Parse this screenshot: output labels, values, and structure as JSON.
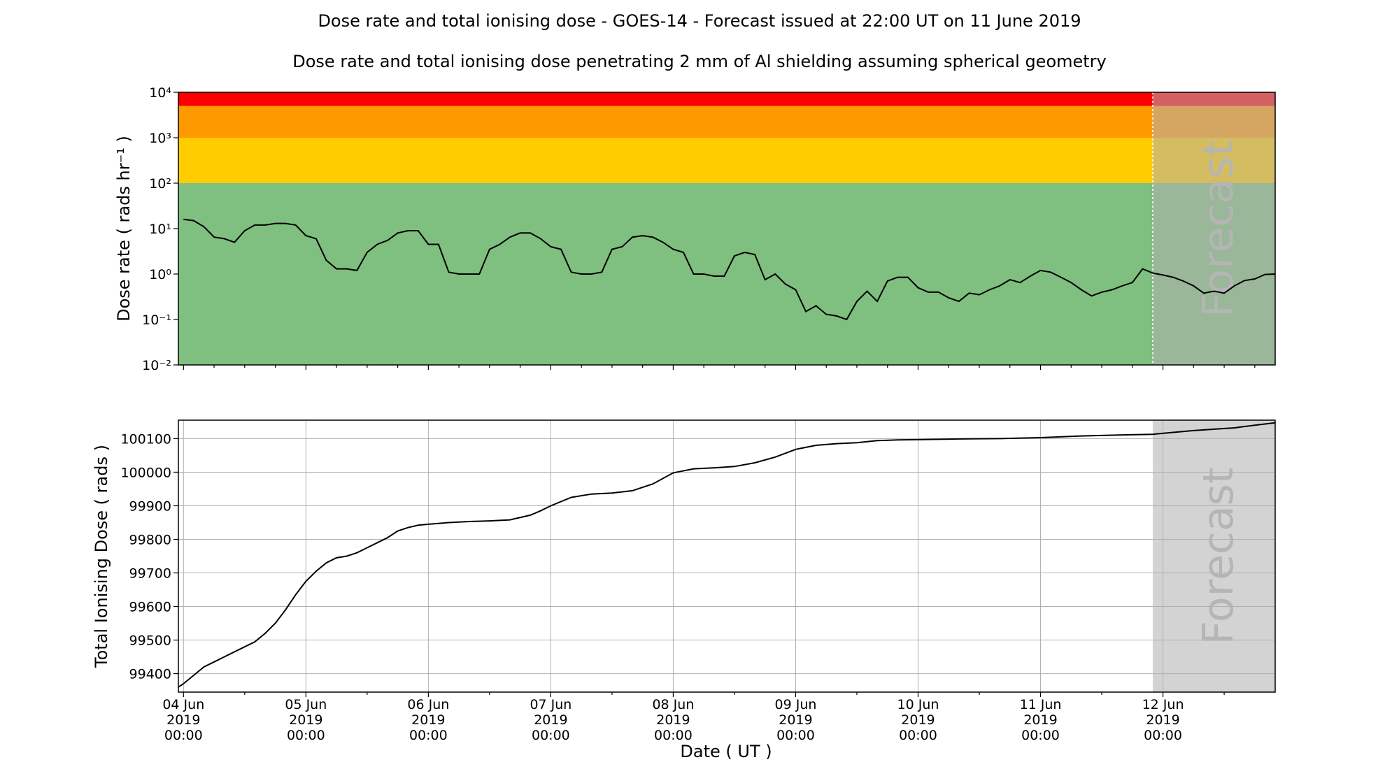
{
  "title": "Dose rate and total ionising dose - GOES-14 - Forecast issued at 22:00 UT on 11 June 2019",
  "subtitle": "Dose rate and total ionising dose penetrating 2 mm of Al shielding assuming spherical geometry",
  "forecast_label": "Forecast",
  "x_label": "Date ( UT )",
  "x_ticks": [
    {
      "day": 0,
      "label": [
        "04 Jun",
        "2019",
        "00:00"
      ]
    },
    {
      "day": 1,
      "label": [
        "05 Jun",
        "2019",
        "00:00"
      ]
    },
    {
      "day": 2,
      "label": [
        "06 Jun",
        "2019",
        "00:00"
      ]
    },
    {
      "day": 3,
      "label": [
        "07 Jun",
        "2019",
        "00:00"
      ]
    },
    {
      "day": 4,
      "label": [
        "08 Jun",
        "2019",
        "00:00"
      ]
    },
    {
      "day": 5,
      "label": [
        "09 Jun",
        "2019",
        "00:00"
      ]
    },
    {
      "day": 6,
      "label": [
        "10 Jun",
        "2019",
        "00:00"
      ]
    },
    {
      "day": 7,
      "label": [
        "11 Jun",
        "2019",
        "00:00"
      ]
    },
    {
      "day": 8,
      "label": [
        "12 Jun",
        "2019",
        "00:00"
      ]
    }
  ],
  "colors": {
    "red": "#ff0000",
    "orange": "#ff9900",
    "yellow": "#ffcc00",
    "green": "#7fbf7f",
    "forecast_shade": "#b0b0b0",
    "line": "#000000",
    "grid": "#b0b0b0"
  },
  "chart_data": [
    {
      "type": "line",
      "title": "",
      "xlabel": "Date ( UT )",
      "ylabel": "Dose rate ( rads hr⁻¹ )",
      "yscale": "log",
      "xlim": [
        "2019-06-03 23:00",
        "2019-06-12 22:00"
      ],
      "ylim": [
        0.01,
        10000
      ],
      "y_tick_labels": [
        "10⁻²",
        "10⁻¹",
        "10⁰",
        "10¹",
        "10²",
        "10³",
        "10⁴"
      ],
      "forecast_start": "2019-06-11 22:00",
      "bands": [
        {
          "color": "green",
          "from": 0.01,
          "to": 100
        },
        {
          "color": "yellow",
          "from": 100,
          "to": 1000
        },
        {
          "color": "orange",
          "from": 1000,
          "to": 5000
        },
        {
          "color": "red",
          "from": 5000,
          "to": 10000
        }
      ],
      "series": [
        {
          "x": [
            "2019-06-04 00:00",
            "2019-06-04 02:00",
            "2019-06-04 04:00",
            "2019-06-04 06:00",
            "2019-06-04 08:00",
            "2019-06-04 10:00",
            "2019-06-04 12:00",
            "2019-06-04 14:00",
            "2019-06-04 16:00",
            "2019-06-04 18:00",
            "2019-06-04 20:00",
            "2019-06-04 22:00",
            "2019-06-05 00:00",
            "2019-06-05 02:00",
            "2019-06-05 04:00",
            "2019-06-05 06:00",
            "2019-06-05 08:00",
            "2019-06-05 10:00",
            "2019-06-05 12:00",
            "2019-06-05 14:00",
            "2019-06-05 16:00",
            "2019-06-05 18:00",
            "2019-06-05 20:00",
            "2019-06-05 22:00",
            "2019-06-06 00:00",
            "2019-06-06 02:00",
            "2019-06-06 04:00",
            "2019-06-06 06:00",
            "2019-06-06 08:00",
            "2019-06-06 10:00",
            "2019-06-06 12:00",
            "2019-06-06 14:00",
            "2019-06-06 16:00",
            "2019-06-06 18:00",
            "2019-06-06 20:00",
            "2019-06-06 22:00",
            "2019-06-07 00:00",
            "2019-06-07 02:00",
            "2019-06-07 04:00",
            "2019-06-07 06:00",
            "2019-06-07 08:00",
            "2019-06-07 10:00",
            "2019-06-07 12:00",
            "2019-06-07 14:00",
            "2019-06-07 16:00",
            "2019-06-07 18:00",
            "2019-06-07 20:00",
            "2019-06-07 22:00",
            "2019-06-08 00:00",
            "2019-06-08 02:00",
            "2019-06-08 04:00",
            "2019-06-08 06:00",
            "2019-06-08 08:00",
            "2019-06-08 10:00",
            "2019-06-08 12:00",
            "2019-06-08 14:00",
            "2019-06-08 16:00",
            "2019-06-08 18:00",
            "2019-06-08 20:00",
            "2019-06-08 22:00",
            "2019-06-09 00:00",
            "2019-06-09 02:00",
            "2019-06-09 04:00",
            "2019-06-09 06:00",
            "2019-06-09 08:00",
            "2019-06-09 10:00",
            "2019-06-09 12:00",
            "2019-06-09 14:00",
            "2019-06-09 16:00",
            "2019-06-09 18:00",
            "2019-06-09 20:00",
            "2019-06-09 22:00",
            "2019-06-10 00:00",
            "2019-06-10 02:00",
            "2019-06-10 04:00",
            "2019-06-10 06:00",
            "2019-06-10 08:00",
            "2019-06-10 10:00",
            "2019-06-10 12:00",
            "2019-06-10 14:00",
            "2019-06-10 16:00",
            "2019-06-10 18:00",
            "2019-06-10 20:00",
            "2019-06-10 22:00",
            "2019-06-11 00:00",
            "2019-06-11 02:00",
            "2019-06-11 04:00",
            "2019-06-11 06:00",
            "2019-06-11 08:00",
            "2019-06-11 10:00",
            "2019-06-11 12:00",
            "2019-06-11 14:00",
            "2019-06-11 16:00",
            "2019-06-11 18:00",
            "2019-06-11 20:00",
            "2019-06-11 22:00",
            "2019-06-12 00:00",
            "2019-06-12 02:00",
            "2019-06-12 04:00",
            "2019-06-12 06:00",
            "2019-06-12 08:00",
            "2019-06-12 10:00",
            "2019-06-12 12:00",
            "2019-06-12 14:00",
            "2019-06-12 16:00",
            "2019-06-12 18:00",
            "2019-06-12 20:00",
            "2019-06-12 22:00"
          ],
          "y": [
            16,
            15,
            11,
            6.5,
            6,
            5,
            9,
            12,
            12,
            13,
            13,
            12,
            7,
            6,
            2,
            1.3,
            1.3,
            1.2,
            3,
            4.5,
            5.5,
            8,
            9,
            9,
            4.5,
            4.5,
            1.1,
            1,
            1,
            1,
            3.5,
            4.5,
            6.5,
            8,
            8,
            6,
            4,
            3.5,
            1.1,
            1,
            1,
            1.1,
            3.5,
            4,
            6.5,
            7,
            6.5,
            5,
            3.5,
            3,
            1,
            1,
            0.9,
            0.9,
            2.5,
            3,
            2.7,
            0.75,
            1,
            0.6,
            0.45,
            0.15,
            0.2,
            0.13,
            0.12,
            0.1,
            0.25,
            0.42,
            0.25,
            0.7,
            0.85,
            0.85,
            0.5,
            0.4,
            0.4,
            0.3,
            0.25,
            0.38,
            0.35,
            0.45,
            0.55,
            0.75,
            0.65,
            0.9,
            1.2,
            1.1,
            0.85,
            0.65,
            0.45,
            0.33,
            0.4,
            0.45,
            0.55,
            0.65,
            1.3,
            1.05,
            0.95,
            0.85,
            0.7,
            0.55,
            0.38,
            0.42,
            0.38,
            0.55,
            0.72,
            0.78,
            0.98,
            1.0
          ]
        }
      ]
    },
    {
      "type": "line",
      "title": "",
      "xlabel": "Date ( UT )",
      "ylabel": "Total Ionising Dose ( rads )",
      "xlim": [
        "2019-06-03 23:00",
        "2019-06-12 22:00"
      ],
      "ylim": [
        99345,
        100155
      ],
      "y_ticks": [
        99400,
        99500,
        99600,
        99700,
        99800,
        99900,
        100000,
        100100
      ],
      "grid": true,
      "forecast_start": "2019-06-11 22:00",
      "series": [
        {
          "x": [
            "2019-06-03 23:00",
            "2019-06-04 00:00",
            "2019-06-04 02:00",
            "2019-06-04 04:00",
            "2019-06-04 06:00",
            "2019-06-04 08:00",
            "2019-06-04 10:00",
            "2019-06-04 12:00",
            "2019-06-04 14:00",
            "2019-06-04 16:00",
            "2019-06-04 18:00",
            "2019-06-04 20:00",
            "2019-06-04 22:00",
            "2019-06-05 00:00",
            "2019-06-05 02:00",
            "2019-06-05 04:00",
            "2019-06-05 06:00",
            "2019-06-05 08:00",
            "2019-06-05 10:00",
            "2019-06-05 12:00",
            "2019-06-05 14:00",
            "2019-06-05 16:00",
            "2019-06-05 18:00",
            "2019-06-05 20:00",
            "2019-06-05 22:00",
            "2019-06-06 00:00",
            "2019-06-06 04:00",
            "2019-06-06 08:00",
            "2019-06-06 12:00",
            "2019-06-06 16:00",
            "2019-06-06 20:00",
            "2019-06-06 22:00",
            "2019-06-07 00:00",
            "2019-06-07 04:00",
            "2019-06-07 08:00",
            "2019-06-07 12:00",
            "2019-06-07 16:00",
            "2019-06-07 20:00",
            "2019-06-08 00:00",
            "2019-06-08 04:00",
            "2019-06-08 08:00",
            "2019-06-08 12:00",
            "2019-06-08 16:00",
            "2019-06-08 20:00",
            "2019-06-09 00:00",
            "2019-06-09 04:00",
            "2019-06-09 08:00",
            "2019-06-09 12:00",
            "2019-06-09 16:00",
            "2019-06-09 20:00",
            "2019-06-10 00:00",
            "2019-06-10 08:00",
            "2019-06-10 16:00",
            "2019-06-11 00:00",
            "2019-06-11 08:00",
            "2019-06-11 16:00",
            "2019-06-11 22:00",
            "2019-06-12 06:00",
            "2019-06-12 14:00",
            "2019-06-12 18:00",
            "2019-06-12 22:00"
          ],
          "y": [
            99360,
            99370,
            99395,
            99420,
            99435,
            99450,
            99465,
            99480,
            99495,
            99520,
            99550,
            99590,
            99635,
            99675,
            99705,
            99730,
            99745,
            99750,
            99760,
            99775,
            99790,
            99805,
            99825,
            99835,
            99842,
            99845,
            99850,
            99853,
            99855,
            99858,
            99872,
            99885,
            99900,
            99925,
            99935,
            99938,
            99945,
            99965,
            99998,
            100010,
            100013,
            100017,
            100028,
            100045,
            100068,
            100080,
            100085,
            100088,
            100094,
            100096,
            100097,
            100099,
            100100,
            100103,
            100108,
            100111,
            100113,
            100124,
            100132,
            100140,
            100147
          ]
        }
      ]
    }
  ]
}
